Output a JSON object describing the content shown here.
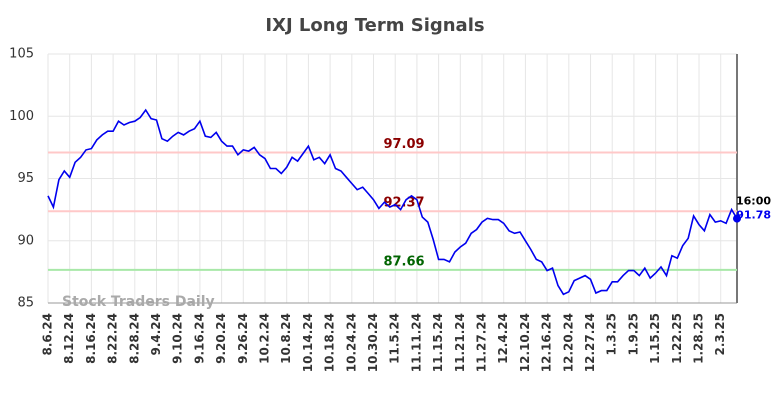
{
  "chart_data": {
    "type": "line",
    "title": "IXJ Long Term Signals",
    "watermark": "Stock Traders Daily",
    "categories": [
      "8.6.24",
      null,
      null,
      null,
      "8.12.24",
      null,
      null,
      null,
      "8.16.24",
      null,
      null,
      null,
      "8.22.24",
      null,
      null,
      null,
      "8.28.24",
      null,
      null,
      null,
      "9.4.24",
      null,
      null,
      null,
      "9.10.24",
      null,
      null,
      null,
      "9.16.24",
      null,
      null,
      null,
      "9.20.24",
      null,
      null,
      null,
      "9.26.24",
      null,
      null,
      null,
      "10.2.24",
      null,
      null,
      null,
      "10.8.24",
      null,
      null,
      null,
      "10.14.24",
      null,
      null,
      null,
      "10.18.24",
      null,
      null,
      null,
      "10.24.24",
      null,
      null,
      null,
      "10.30.24",
      null,
      null,
      null,
      "11.5.24",
      null,
      null,
      null,
      "11.11.24",
      null,
      null,
      null,
      "11.15.24",
      null,
      null,
      null,
      "11.21.24",
      null,
      null,
      null,
      "11.27.24",
      null,
      null,
      null,
      "12.4.24",
      null,
      null,
      null,
      "12.10.24",
      null,
      null,
      null,
      "12.16.24",
      null,
      null,
      null,
      "12.20.24",
      null,
      null,
      null,
      "12.27.24",
      null,
      null,
      null,
      "1.3.25",
      null,
      null,
      null,
      "1.9.25",
      null,
      null,
      null,
      "1.15.25",
      null,
      null,
      null,
      "1.22.25",
      null,
      null,
      null,
      "1.28.25",
      null,
      null,
      null,
      "2.3.25",
      null,
      null,
      null
    ],
    "values": [
      93.6,
      92.7,
      94.9,
      95.6,
      95.1,
      96.3,
      96.7,
      97.3,
      97.4,
      98.1,
      98.5,
      98.8,
      98.8,
      99.6,
      99.3,
      99.5,
      99.6,
      99.9,
      100.5,
      99.8,
      99.7,
      98.2,
      98.0,
      98.4,
      98.7,
      98.5,
      98.8,
      99.0,
      99.6,
      98.4,
      98.3,
      98.7,
      98.0,
      97.6,
      97.6,
      96.9,
      97.3,
      97.2,
      97.5,
      96.9,
      96.6,
      95.8,
      95.8,
      95.4,
      95.9,
      96.7,
      96.4,
      97.0,
      97.6,
      96.5,
      96.7,
      96.2,
      96.9,
      95.8,
      95.6,
      95.1,
      94.6,
      94.1,
      94.3,
      93.8,
      93.3,
      92.6,
      93.1,
      92.7,
      92.9,
      92.5,
      93.3,
      93.6,
      93.3,
      91.9,
      91.5,
      90.1,
      88.5,
      88.5,
      88.3,
      89.1,
      89.5,
      89.8,
      90.6,
      90.9,
      91.5,
      91.8,
      91.7,
      91.7,
      91.4,
      90.8,
      90.6,
      90.7,
      90.0,
      89.3,
      88.5,
      88.3,
      87.6,
      87.8,
      86.4,
      85.7,
      85.9,
      86.8,
      87.0,
      87.2,
      86.9,
      85.8,
      86.0,
      86.0,
      86.7,
      86.7,
      87.2,
      87.6,
      87.6,
      87.2,
      87.8,
      87.0,
      87.4,
      87.9,
      87.2,
      88.8,
      88.6,
      89.6,
      90.2,
      92.0,
      91.3,
      90.8,
      92.1,
      91.5,
      91.6,
      91.4,
      92.5,
      91.78
    ],
    "color": "#0000ee",
    "last_time": "16:00",
    "hlines": [
      {
        "value": 97.09,
        "color": "#ffc8c8",
        "text_color": "#8b0000"
      },
      {
        "value": 92.37,
        "color": "#ffc8c8",
        "text_color": "#8b0000"
      },
      {
        "value": 87.66,
        "color": "#a8e8a8",
        "text_color": "#006400"
      }
    ],
    "ylim": [
      85,
      105
    ],
    "yticks": [
      85,
      90,
      95,
      100,
      105
    ],
    "grid": true
  }
}
